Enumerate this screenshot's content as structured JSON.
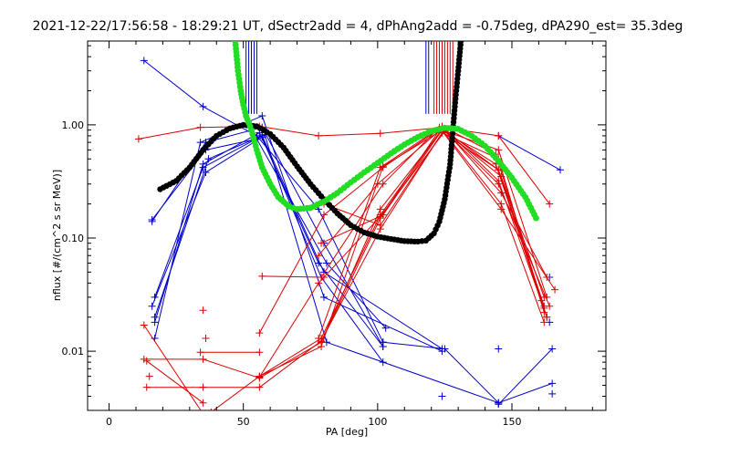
{
  "chart_data": {
    "type": "scatter",
    "title": "2021-12-22/17:56:58 - 18:29:21 UT, dSectr2add = 4, dPhAng2add = -0.75deg, dPA290_est=  35.3deg",
    "xlabel": "PA [deg]",
    "ylabel": "nflux [#/(cm^2 s sr MeV)]",
    "xlim": [
      -8,
      185
    ],
    "ylim": [
      0.003,
      5.5
    ],
    "yscale": "log",
    "grid": false,
    "xticks": [
      {
        "value": 0,
        "label": "0"
      },
      {
        "value": 50,
        "label": "50"
      },
      {
        "value": 100,
        "label": "100"
      },
      {
        "value": 150,
        "label": "150"
      }
    ],
    "yticks": [
      {
        "value": 0.01,
        "label": "0.01"
      },
      {
        "value": 0.1,
        "label": "0.10"
      },
      {
        "value": 1.0,
        "label": "1.00"
      }
    ],
    "colors": {
      "blue": "#0000cc",
      "red": "#dd0000",
      "black": "#000000",
      "green": "#22dd22"
    },
    "series": [
      {
        "color": "#0000cc",
        "points": [
          [
            13,
            3.7
          ],
          [
            35,
            1.45
          ],
          [
            55,
            0.8
          ],
          [
            78,
            0.18
          ],
          [
            102,
            0.012
          ]
        ]
      },
      {
        "color": "#0000cc",
        "points": [
          [
            16,
            0.14
          ],
          [
            36,
            0.7
          ],
          [
            57,
            0.95
          ],
          [
            80,
            0.09
          ],
          [
            102,
            0.011
          ]
        ]
      },
      {
        "color": "#0000cc",
        "points": [
          [
            16,
            0.145
          ],
          [
            36,
            0.6
          ],
          [
            55,
            0.75
          ],
          [
            81,
            0.06
          ],
          [
            103,
            0.016
          ]
        ]
      },
      {
        "color": "#0000cc",
        "points": [
          [
            17,
            0.03
          ],
          [
            35,
            0.42
          ],
          [
            57,
            0.8
          ],
          [
            80,
            0.05
          ],
          [
            124,
            0.0105
          ]
        ]
      },
      {
        "color": "#0000cc",
        "points": [
          [
            16,
            0.025
          ],
          [
            36,
            0.38
          ],
          [
            57,
            0.78
          ],
          [
            79,
            0.045
          ],
          [
            102,
            0.008
          ]
        ]
      },
      {
        "color": "#0000cc",
        "points": [
          [
            17,
            0.02
          ],
          [
            37,
            0.5
          ],
          [
            58,
            0.82
          ],
          [
            81,
            0.012
          ],
          [
            145,
            0.0035
          ]
        ]
      },
      {
        "color": "#0000cc",
        "points": [
          [
            17,
            0.018
          ],
          [
            35,
            0.45
          ],
          [
            56,
            0.85
          ],
          [
            78,
            0.06
          ],
          [
            102,
            0.011
          ]
        ]
      },
      {
        "color": "#0000cc",
        "points": [
          [
            17,
            0.013
          ],
          [
            34,
            0.7
          ],
          [
            57,
            1.2
          ],
          [
            80,
            0.03
          ],
          [
            124,
            0.01
          ]
        ]
      },
      {
        "color": "#0000cc",
        "points": [
          [
            102,
            0.012
          ],
          [
            125,
            0.0105
          ],
          [
            145,
            0.0035
          ],
          [
            165,
            0.0052
          ]
        ]
      },
      {
        "color": "#0000cc",
        "points": [
          [
            145,
            0.0034
          ],
          [
            165,
            0.0105
          ]
        ]
      },
      {
        "color": "#0000cc",
        "points": [
          [
            145,
            0.8
          ],
          [
            168,
            0.4
          ]
        ]
      },
      {
        "color": "#0000cc",
        "points": [
          [
            124,
            0.004
          ]
        ]
      },
      {
        "color": "#0000cc",
        "points": [
          [
            145,
            0.0105
          ]
        ]
      },
      {
        "color": "#0000cc",
        "points": [
          [
            165,
            0.0042
          ]
        ]
      },
      {
        "color": "#0000cc",
        "points": [
          [
            164,
            0.018
          ]
        ]
      },
      {
        "color": "#0000cc",
        "points": [
          [
            164,
            0.045
          ]
        ]
      },
      {
        "color": "#dd0000",
        "points": [
          [
            11,
            0.75
          ],
          [
            34,
            0.95
          ],
          [
            56,
            0.97
          ],
          [
            78,
            0.8
          ],
          [
            101,
            0.84
          ],
          [
            124,
            0.95
          ],
          [
            145,
            0.8
          ],
          [
            164,
            0.2
          ]
        ]
      },
      {
        "color": "#dd0000",
        "points": [
          [
            13,
            0.0085
          ],
          [
            35,
            0.0085
          ],
          [
            56,
            0.0058
          ],
          [
            79,
            0.012
          ],
          [
            101,
            0.15
          ],
          [
            123,
            0.9
          ],
          [
            145,
            0.4
          ],
          [
            162,
            0.025
          ]
        ]
      },
      {
        "color": "#dd0000",
        "points": [
          [
            14,
            0.0048
          ],
          [
            35,
            0.0048
          ],
          [
            56,
            0.0048
          ],
          [
            79,
            0.0123
          ],
          [
            101,
            0.12
          ],
          [
            124,
            0.85
          ],
          [
            145,
            0.5
          ],
          [
            162,
            0.022
          ]
        ]
      },
      {
        "color": "#dd0000",
        "points": [
          [
            34,
            0.0098
          ],
          [
            56,
            0.0098
          ]
        ]
      },
      {
        "color": "#dd0000",
        "points": [
          [
            13,
            0.017
          ],
          [
            35,
            0.0028
          ]
        ]
      },
      {
        "color": "#dd0000",
        "points": [
          [
            14,
            0.0082
          ],
          [
            35,
            0.0035
          ]
        ]
      },
      {
        "color": "#dd0000",
        "points": [
          [
            38,
            0.0029
          ],
          [
            56,
            0.006
          ],
          [
            79,
            0.011
          ],
          [
            102,
            0.43
          ],
          [
            124,
            0.9
          ],
          [
            144,
            0.45
          ],
          [
            163,
            0.02
          ]
        ]
      },
      {
        "color": "#dd0000",
        "points": [
          [
            56,
            0.006
          ],
          [
            79,
            0.013
          ],
          [
            101,
            0.16
          ],
          [
            124,
            0.92
          ],
          [
            146,
            0.35
          ],
          [
            162,
            0.03
          ]
        ]
      },
      {
        "color": "#dd0000",
        "points": [
          [
            56,
            0.0145
          ],
          [
            80,
            0.16
          ],
          [
            102,
            0.42
          ],
          [
            124,
            0.95
          ],
          [
            146,
            0.25
          ],
          [
            163,
            0.045
          ]
        ]
      },
      {
        "color": "#dd0000",
        "points": [
          [
            57,
            0.046
          ],
          [
            80,
            0.045
          ]
        ]
      },
      {
        "color": "#dd0000",
        "points": [
          [
            56,
            0.0059
          ],
          [
            78,
            0.04
          ],
          [
            101,
            0.155
          ],
          [
            125,
            0.88
          ],
          [
            145,
            0.3
          ],
          [
            164,
            0.025
          ]
        ]
      },
      {
        "color": "#dd0000",
        "points": [
          [
            79,
            0.012
          ],
          [
            101,
            0.18
          ],
          [
            124,
            0.9
          ],
          [
            145,
            0.6
          ],
          [
            163,
            0.03
          ]
        ]
      },
      {
        "color": "#dd0000",
        "points": [
          [
            79,
            0.045
          ],
          [
            102,
            0.3
          ],
          [
            123,
            0.95
          ],
          [
            146,
            0.18
          ],
          [
            166,
            0.035
          ]
        ]
      },
      {
        "color": "#dd0000",
        "points": [
          [
            78,
            0.013
          ],
          [
            101,
            0.42
          ],
          [
            124,
            0.97
          ],
          [
            144,
            0.55
          ],
          [
            162,
            0.024
          ]
        ]
      },
      {
        "color": "#dd0000",
        "points": [
          [
            79,
            0.09
          ],
          [
            102,
            0.16
          ],
          [
            124,
            0.9
          ],
          [
            146,
            0.2
          ],
          [
            162,
            0.018
          ]
        ]
      },
      {
        "color": "#dd0000",
        "points": [
          [
            80,
            0.2
          ],
          [
            101,
            0.13
          ],
          [
            125,
            0.92
          ],
          [
            145,
            0.32
          ],
          [
            163,
            0.02
          ]
        ]
      },
      {
        "color": "#dd0000",
        "points": [
          [
            78,
            0.07
          ],
          [
            100,
            0.3
          ],
          [
            124,
            0.93
          ],
          [
            145,
            0.4
          ],
          [
            161,
            0.028
          ]
        ]
      },
      {
        "color": "#dd0000",
        "points": [
          [
            15,
            0.006
          ]
        ]
      },
      {
        "color": "#dd0000",
        "points": [
          [
            36,
            0.013
          ]
        ]
      },
      {
        "color": "#dd0000",
        "points": [
          [
            35,
            0.023
          ]
        ]
      }
    ],
    "black_curve": [
      [
        19,
        0.27
      ],
      [
        25,
        0.32
      ],
      [
        30,
        0.42
      ],
      [
        35,
        0.6
      ],
      [
        40,
        0.8
      ],
      [
        45,
        0.93
      ],
      [
        50,
        1.0
      ],
      [
        55,
        0.97
      ],
      [
        60,
        0.83
      ],
      [
        65,
        0.63
      ],
      [
        70,
        0.43
      ],
      [
        75,
        0.3
      ],
      [
        80,
        0.22
      ],
      [
        85,
        0.165
      ],
      [
        90,
        0.13
      ],
      [
        95,
        0.112
      ],
      [
        100,
        0.103
      ],
      [
        105,
        0.098
      ],
      [
        110,
        0.094
      ],
      [
        115,
        0.093
      ],
      [
        118,
        0.095
      ],
      [
        121,
        0.11
      ],
      [
        123,
        0.14
      ],
      [
        125,
        0.22
      ],
      [
        127,
        0.45
      ],
      [
        128,
        0.9
      ],
      [
        129,
        1.7
      ],
      [
        130,
        3.0
      ],
      [
        131,
        5.5
      ]
    ],
    "green_curve": [
      [
        47,
        5.5
      ],
      [
        48,
        3.0
      ],
      [
        49,
        2.0
      ],
      [
        50,
        1.5
      ],
      [
        51,
        1.2
      ],
      [
        53,
        0.9
      ],
      [
        55,
        0.6
      ],
      [
        57,
        0.42
      ],
      [
        60,
        0.3
      ],
      [
        63,
        0.23
      ],
      [
        67,
        0.19
      ],
      [
        70,
        0.18
      ],
      [
        75,
        0.185
      ],
      [
        80,
        0.21
      ],
      [
        85,
        0.25
      ],
      [
        90,
        0.31
      ],
      [
        95,
        0.38
      ],
      [
        100,
        0.46
      ],
      [
        105,
        0.56
      ],
      [
        110,
        0.67
      ],
      [
        115,
        0.78
      ],
      [
        120,
        0.88
      ],
      [
        125,
        0.94
      ],
      [
        130,
        0.92
      ],
      [
        135,
        0.8
      ],
      [
        140,
        0.65
      ],
      [
        145,
        0.48
      ],
      [
        150,
        0.34
      ],
      [
        155,
        0.23
      ],
      [
        159,
        0.15
      ]
    ],
    "vertical_lines": [
      {
        "color": "#0000cc",
        "x": 51,
        "y_from": 1.25,
        "y_to": 5.5
      },
      {
        "color": "#0000cc",
        "x": 52,
        "y_from": 1.25,
        "y_to": 5.5
      },
      {
        "color": "#0000cc",
        "x": 53,
        "y_from": 1.25,
        "y_to": 5.5
      },
      {
        "color": "#0000cc",
        "x": 54,
        "y_from": 1.25,
        "y_to": 5.5
      },
      {
        "color": "#0000cc",
        "x": 55,
        "y_from": 1.25,
        "y_to": 5.5
      },
      {
        "color": "#0000cc",
        "x": 118,
        "y_from": 1.25,
        "y_to": 5.5
      },
      {
        "color": "#0000cc",
        "x": 119,
        "y_from": 1.25,
        "y_to": 5.5
      },
      {
        "color": "#dd0000",
        "x": 121,
        "y_from": 1.25,
        "y_to": 5.5
      },
      {
        "color": "#dd0000",
        "x": 122,
        "y_from": 1.25,
        "y_to": 5.5
      },
      {
        "color": "#dd0000",
        "x": 123,
        "y_from": 1.25,
        "y_to": 5.5
      },
      {
        "color": "#dd0000",
        "x": 124,
        "y_from": 1.25,
        "y_to": 5.5
      },
      {
        "color": "#dd0000",
        "x": 125,
        "y_from": 1.25,
        "y_to": 5.5
      },
      {
        "color": "#dd0000",
        "x": 126,
        "y_from": 1.25,
        "y_to": 5.5
      },
      {
        "color": "#dd0000",
        "x": 127,
        "y_from": 1.25,
        "y_to": 5.5
      },
      {
        "color": "#dd0000",
        "x": 128,
        "y_from": 1.25,
        "y_to": 5.5
      }
    ]
  }
}
